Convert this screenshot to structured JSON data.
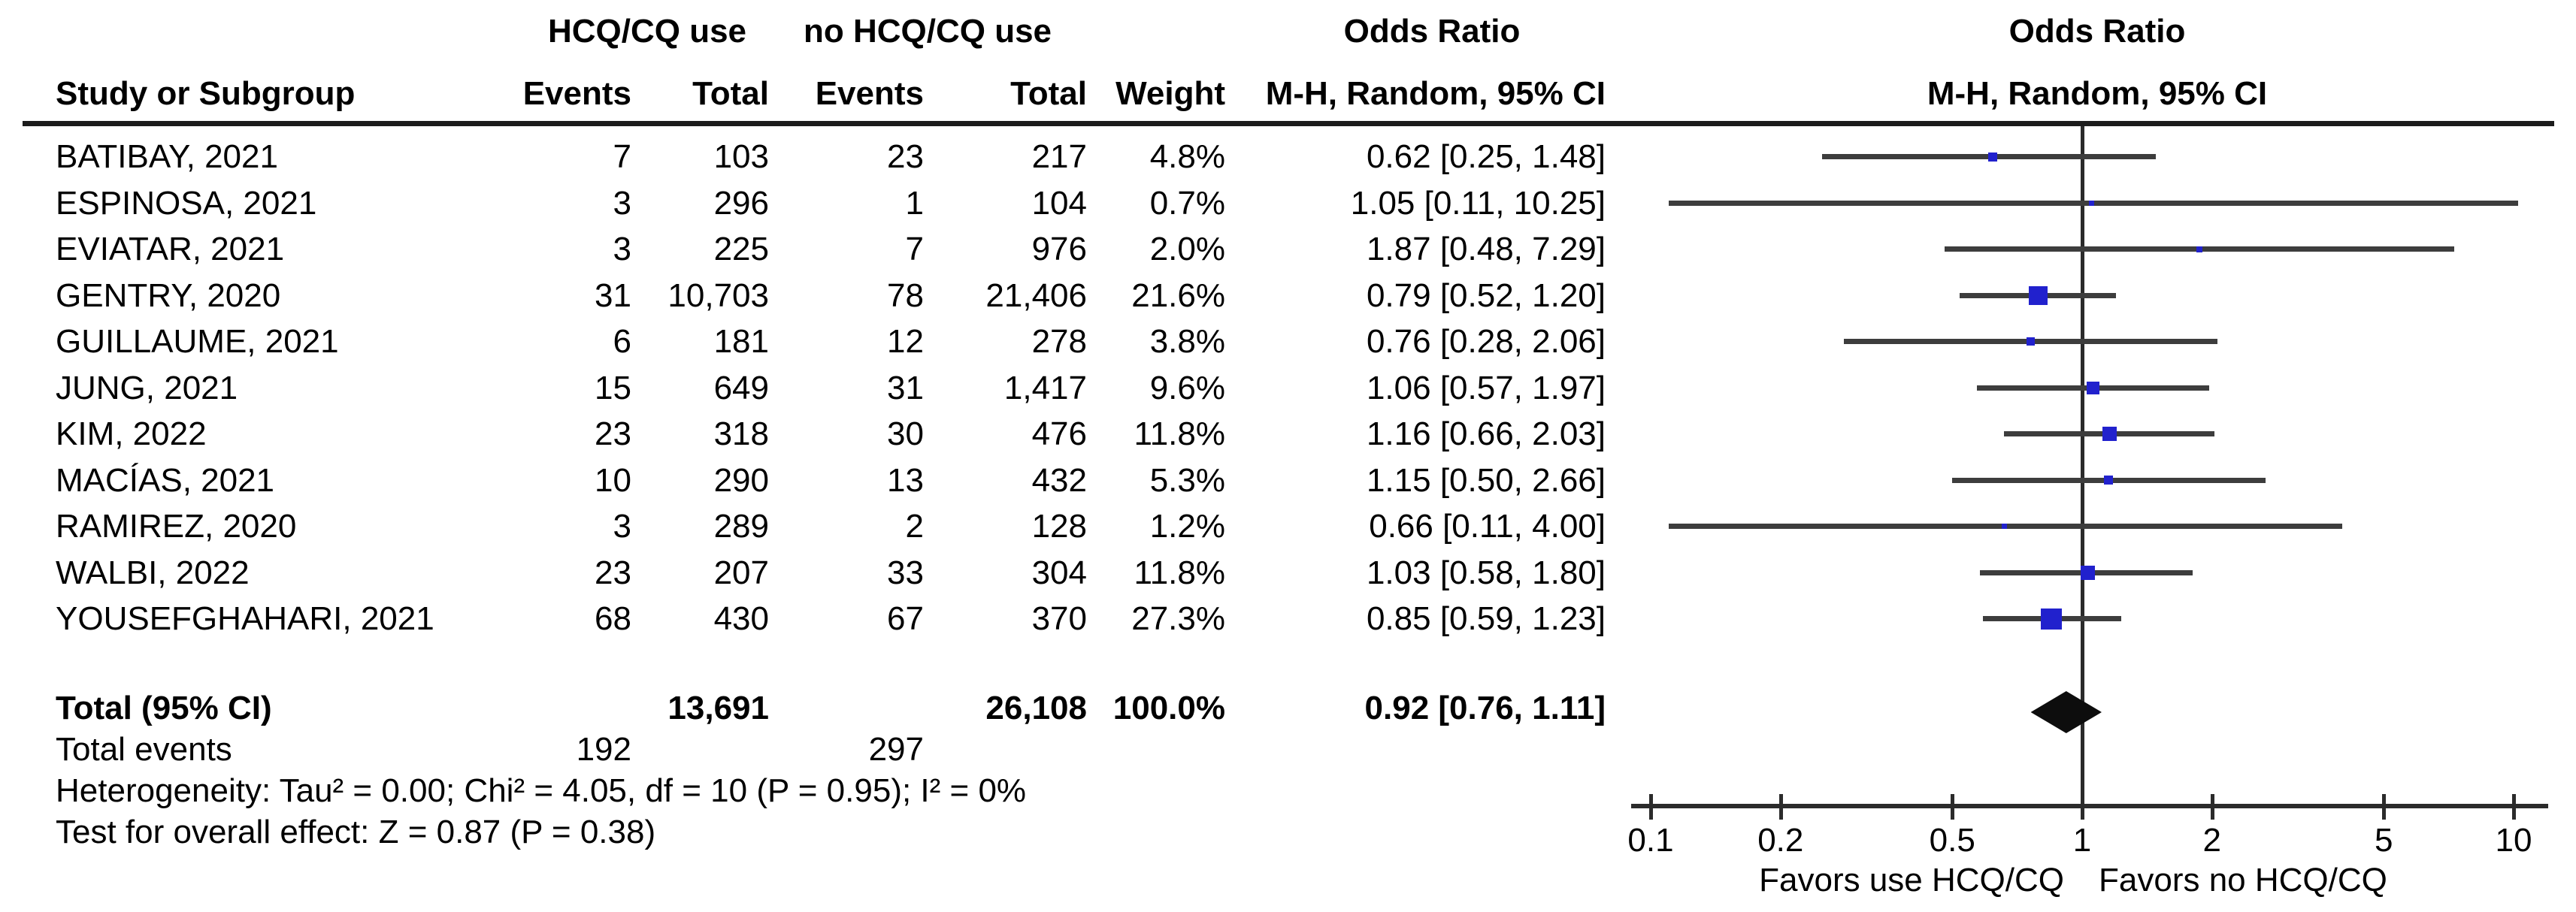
{
  "header": {
    "group1": "HCQ/CQ use",
    "group2": "no HCQ/CQ use",
    "or_col": {
      "line1": "Odds Ratio",
      "line2": "M-H, Random, 95% CI"
    },
    "plot_col": {
      "line1": "Odds Ratio",
      "line2": "M-H, Random, 95% CI"
    },
    "cols": {
      "study": "Study or Subgroup",
      "events1": "Events",
      "total1": "Total",
      "events2": "Events",
      "total2": "Total",
      "weight": "Weight"
    }
  },
  "chart_data": {
    "type": "forest",
    "title": "Odds Ratio M-H, Random, 95% CI",
    "x_axis": {
      "scale": "log",
      "range": [
        0.1,
        10
      ],
      "ticks": [
        0.1,
        0.2,
        0.5,
        1,
        2,
        5,
        10
      ],
      "tick_labels": [
        "0.1",
        "0.2",
        "0.5",
        "1",
        "2",
        "5",
        "10"
      ],
      "null_line": 1
    },
    "favors_left": "Favors use HCQ/CQ",
    "favors_right": "Favors no HCQ/CQ",
    "marker_color": "#2121cd",
    "diamond_color": "#0d0d0d",
    "studies": [
      {
        "label": "BATIBAY, 2021",
        "events1": "7",
        "total1": "103",
        "events2": "23",
        "total2": "217",
        "weight": "4.8%",
        "or_text": "0.62 [0.25, 1.48]",
        "or": 0.62,
        "lo": 0.25,
        "hi": 1.48
      },
      {
        "label": "ESPINOSA, 2021",
        "events1": "3",
        "total1": "296",
        "events2": "1",
        "total2": "104",
        "weight": "0.7%",
        "or_text": "1.05 [0.11, 10.25]",
        "or": 1.05,
        "lo": 0.11,
        "hi": 10.25
      },
      {
        "label": "EVIATAR, 2021",
        "events1": "3",
        "total1": "225",
        "events2": "7",
        "total2": "976",
        "weight": "2.0%",
        "or_text": "1.87 [0.48, 7.29]",
        "or": 1.87,
        "lo": 0.48,
        "hi": 7.29
      },
      {
        "label": "GENTRY, 2020",
        "events1": "31",
        "total1": "10,703",
        "events2": "78",
        "total2": "21,406",
        "weight": "21.6%",
        "or_text": "0.79 [0.52, 1.20]",
        "or": 0.79,
        "lo": 0.52,
        "hi": 1.2
      },
      {
        "label": "GUILLAUME, 2021",
        "events1": "6",
        "total1": "181",
        "events2": "12",
        "total2": "278",
        "weight": "3.8%",
        "or_text": "0.76 [0.28, 2.06]",
        "or": 0.76,
        "lo": 0.28,
        "hi": 2.06
      },
      {
        "label": "JUNG, 2021",
        "events1": "15",
        "total1": "649",
        "events2": "31",
        "total2": "1,417",
        "weight": "9.6%",
        "or_text": "1.06 [0.57, 1.97]",
        "or": 1.06,
        "lo": 0.57,
        "hi": 1.97
      },
      {
        "label": "KIM, 2022",
        "events1": "23",
        "total1": "318",
        "events2": "30",
        "total2": "476",
        "weight": "11.8%",
        "or_text": "1.16 [0.66, 2.03]",
        "or": 1.16,
        "lo": 0.66,
        "hi": 2.03
      },
      {
        "label": "MACÍAS, 2021",
        "events1": "10",
        "total1": "290",
        "events2": "13",
        "total2": "432",
        "weight": "5.3%",
        "or_text": "1.15 [0.50, 2.66]",
        "or": 1.15,
        "lo": 0.5,
        "hi": 2.66
      },
      {
        "label": "RAMIREZ, 2020",
        "events1": "3",
        "total1": "289",
        "events2": "2",
        "total2": "128",
        "weight": "1.2%",
        "or_text": "0.66 [0.11, 4.00]",
        "or": 0.66,
        "lo": 0.11,
        "hi": 4.0
      },
      {
        "label": "WALBI, 2022",
        "events1": "23",
        "total1": "207",
        "events2": "33",
        "total2": "304",
        "weight": "11.8%",
        "or_text": "1.03 [0.58, 1.80]",
        "or": 1.03,
        "lo": 0.58,
        "hi": 1.8
      },
      {
        "label": "YOUSEFGHAHARI, 2021",
        "events1": "68",
        "total1": "430",
        "events2": "67",
        "total2": "370",
        "weight": "27.3%",
        "or_text": "0.85 [0.59, 1.23]",
        "or": 0.85,
        "lo": 0.59,
        "hi": 1.23
      }
    ],
    "total": {
      "label": "Total (95% CI)",
      "total1": "13,691",
      "total2": "26,108",
      "weight": "100.0%",
      "or_text": "0.92 [0.76, 1.11]",
      "or": 0.92,
      "lo": 0.76,
      "hi": 1.11
    }
  },
  "footer": {
    "total_events_label": "Total events",
    "total_events1": "192",
    "total_events2": "297",
    "heterogeneity": "Heterogeneity: Tau² = 0.00; Chi² = 4.05, df = 10 (P = 0.95); I² = 0%",
    "overall_effect": "Test for overall effect: Z = 0.87 (P = 0.38)"
  }
}
